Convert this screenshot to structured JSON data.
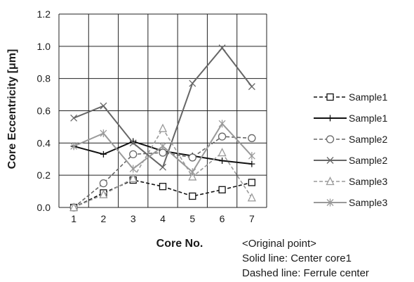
{
  "chart_data": {
    "type": "line",
    "title": "",
    "xlabel": "Core No.",
    "ylabel": "Core Eccentricity [μm]",
    "x": [
      1,
      2,
      3,
      4,
      5,
      6,
      7
    ],
    "xlim": [
      0.5,
      7.5
    ],
    "ylim": [
      0.0,
      1.2
    ],
    "yticks": [
      "0.0",
      "0.2",
      "0.4",
      "0.6",
      "0.8",
      "1.0",
      "1.2"
    ],
    "xticks": [
      "1",
      "2",
      "3",
      "4",
      "5",
      "6",
      "7"
    ],
    "grid": true,
    "legend_position": "right",
    "series": [
      {
        "name": "Sample1",
        "style": "dashed",
        "marker": "square",
        "color": "#111111",
        "values": [
          0.0,
          0.09,
          0.17,
          0.13,
          0.07,
          0.11,
          0.155
        ]
      },
      {
        "name": "Sample1",
        "style": "solid",
        "marker": "plus",
        "color": "#111111",
        "values": [
          0.38,
          0.33,
          0.41,
          0.35,
          0.32,
          0.29,
          0.27
        ]
      },
      {
        "name": "Sample2",
        "style": "dashed",
        "marker": "circle",
        "color": "#666666",
        "values": [
          0.0,
          0.15,
          0.33,
          0.34,
          0.31,
          0.44,
          0.43
        ]
      },
      {
        "name": "Sample2",
        "style": "solid",
        "marker": "x",
        "color": "#666666",
        "values": [
          0.555,
          0.63,
          0.4,
          0.25,
          0.77,
          0.99,
          0.75
        ]
      },
      {
        "name": "Sample3",
        "style": "dashed",
        "marker": "triangle",
        "color": "#9a9a9a",
        "values": [
          0.0,
          0.08,
          0.18,
          0.49,
          0.19,
          0.34,
          0.06
        ]
      },
      {
        "name": "Sample3",
        "style": "solid",
        "marker": "asterisk",
        "color": "#9a9a9a",
        "values": [
          0.38,
          0.46,
          0.24,
          0.38,
          0.22,
          0.52,
          0.32
        ]
      }
    ],
    "notes": [
      "<Original point>",
      "Solid line: Center core1",
      "Dashed line: Ferrule center"
    ]
  }
}
